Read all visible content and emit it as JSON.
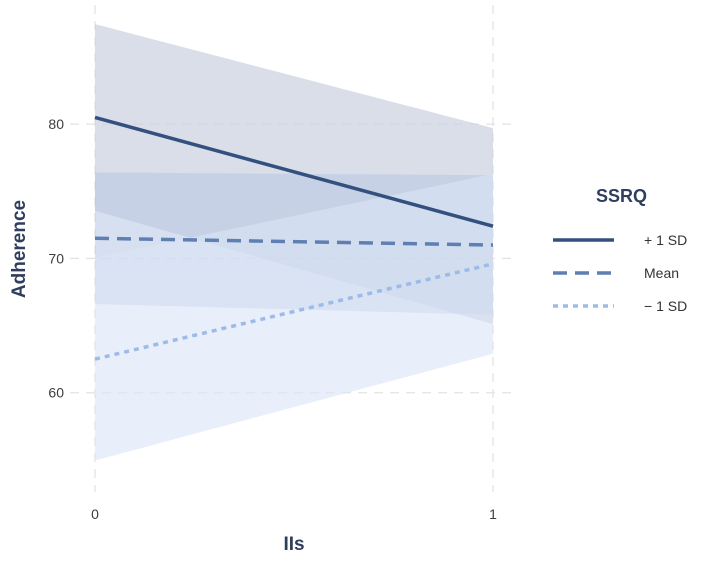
{
  "chart_data": {
    "type": "line",
    "xlabel": "IIs",
    "ylabel": "Adherence",
    "x": [
      0,
      1
    ],
    "xticks": [
      0,
      1
    ],
    "yticks": [
      60,
      70,
      80
    ],
    "xlim": [
      0,
      1
    ],
    "ylim": [
      53.5,
      88.5
    ],
    "grid": true,
    "legend": {
      "title": "SSRQ",
      "position": "right"
    },
    "series": [
      {
        "name": "+ 1 SD",
        "values": [
          80.5,
          72.4
        ],
        "ci_lower": [
          73.6,
          65.2
        ],
        "ci_upper": [
          87.5,
          79.8
        ],
        "color": "#34507e",
        "dash": "solid"
      },
      {
        "name": "Mean",
        "values": [
          71.5,
          71.0
        ],
        "ci_lower": [
          66.7,
          65.8
        ],
        "ci_upper": [
          76.5,
          76.2
        ],
        "color": "#5f7fb3",
        "dash": "dashed"
      },
      {
        "name": "− 1 SD",
        "values": [
          62.5,
          69.6
        ],
        "ci_lower": [
          55.0,
          62.9
        ],
        "ci_upper": [
          70.1,
          76.3
        ],
        "color": "#9cbbe6",
        "dash": "dotted"
      }
    ]
  }
}
